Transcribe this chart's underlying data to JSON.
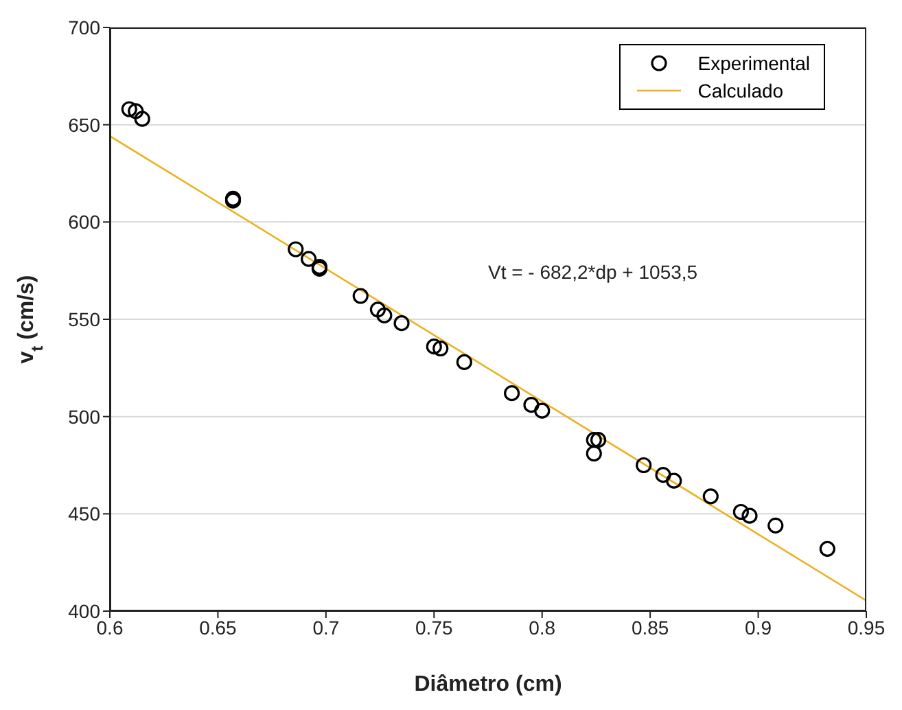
{
  "chart_data": {
    "type": "scatter",
    "xlabel": "Diâmetro (cm)",
    "ylabel": "v$_{t}$ (cm/s)",
    "xlim": [
      0.6,
      0.95
    ],
    "xticks": [
      0.6,
      0.65,
      0.7,
      0.75,
      0.8,
      0.85,
      0.9,
      0.95
    ],
    "ylim": [
      400,
      700
    ],
    "yticks": [
      400,
      450,
      500,
      550,
      600,
      650,
      700
    ],
    "grid": "y",
    "legend": "top right",
    "marker": "circle",
    "annotations": [
      "Vt = - 682,2*dp + 1053,5"
    ],
    "series": [
      {
        "name": "Experimental",
        "color": "#000000",
        "x": [
          0.609,
          0.612,
          0.615,
          0.657,
          0.657,
          0.686,
          0.692,
          0.697,
          0.697,
          0.716,
          0.724,
          0.727,
          0.735,
          0.75,
          0.753,
          0.764,
          0.786,
          0.795,
          0.8,
          0.824,
          0.826,
          0.824,
          0.847,
          0.856,
          0.861,
          0.878,
          0.892,
          0.896,
          0.908,
          0.932
        ],
        "values": [
          658,
          657,
          653,
          612,
          611,
          586,
          581,
          577,
          576,
          562,
          555,
          552,
          548,
          536,
          535,
          528,
          512,
          506,
          503,
          488,
          488,
          481,
          475,
          470,
          467,
          459,
          451,
          449,
          444,
          432
        ]
      },
      {
        "name": "Calculado",
        "type": "line",
        "color": "#edb120",
        "line_style": "solid",
        "marker": "none",
        "x": [
          0.6,
          0.95
        ],
        "values": [
          644.2,
          405.4
        ]
      }
    ]
  }
}
